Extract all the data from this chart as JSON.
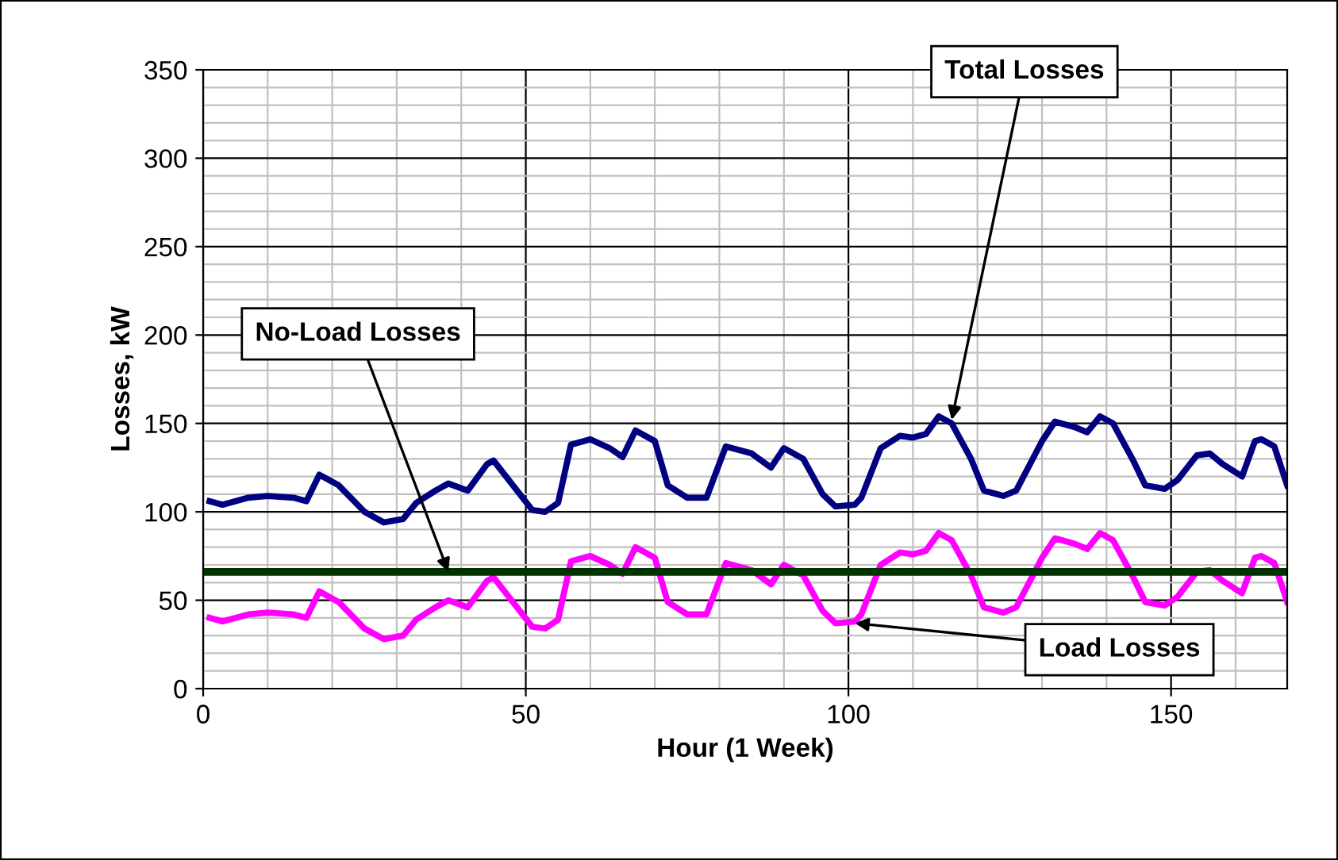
{
  "chart_data": {
    "type": "line",
    "xlabel": "Hour (1 Week)",
    "ylabel": "Losses, kW",
    "x": [
      1,
      3,
      7,
      10,
      14,
      16,
      18,
      21,
      25,
      28,
      31,
      33,
      36,
      38,
      41,
      44,
      45,
      48,
      51,
      53,
      55,
      57,
      60,
      63,
      65,
      67,
      70,
      72,
      75,
      78,
      81,
      85,
      88,
      90,
      93,
      96,
      98,
      101,
      102,
      105,
      108,
      110,
      112,
      114,
      116,
      119,
      121,
      124,
      126,
      130,
      132,
      135,
      137,
      139,
      141,
      144,
      146,
      149,
      151,
      154,
      156,
      158,
      161,
      163,
      164,
      166,
      168
    ],
    "series": [
      {
        "color": "#000080",
        "values": [
          106,
          104,
          108,
          109,
          108,
          106,
          121,
          115,
          100,
          94,
          96,
          105,
          112,
          116,
          112,
          127,
          129,
          115,
          101,
          100,
          105,
          138,
          141,
          136,
          131,
          146,
          140,
          115,
          108,
          108,
          137,
          133,
          125,
          136,
          130,
          110,
          103,
          104,
          108,
          136,
          143,
          142,
          144,
          154,
          150,
          130,
          112,
          109,
          112,
          140,
          151,
          148,
          145,
          154,
          150,
          130,
          115,
          113,
          118,
          132,
          133,
          127,
          120,
          140,
          141,
          137,
          115
        ]
      },
      {
        "color": "#ff00ff",
        "values": [
          40,
          38,
          42,
          43,
          42,
          40,
          55,
          49,
          34,
          28,
          30,
          39,
          46,
          50,
          46,
          61,
          63,
          49,
          35,
          34,
          39,
          72,
          75,
          70,
          65,
          80,
          74,
          49,
          42,
          42,
          71,
          67,
          59,
          70,
          64,
          44,
          37,
          38,
          42,
          70,
          77,
          76,
          78,
          88,
          84,
          64,
          46,
          43,
          46,
          74,
          85,
          82,
          79,
          88,
          84,
          64,
          49,
          47,
          52,
          66,
          67,
          61,
          54,
          74,
          75,
          71,
          49
        ]
      }
    ],
    "ref_lines": [
      {
        "axis": "y",
        "value": 66,
        "color": "#003300"
      }
    ],
    "annotations": [
      {
        "text": "Total Losses",
        "x": 116,
        "y": 152
      },
      {
        "text": "No-Load Losses",
        "x": 38,
        "y": 66
      },
      {
        "text": "Load Losses",
        "x": 101,
        "y": 37
      }
    ],
    "xlim": [
      0,
      168
    ],
    "xticks": [
      0,
      50,
      100,
      150
    ],
    "ylim": [
      0,
      350
    ],
    "yticks": [
      0,
      50,
      100,
      150,
      200,
      250,
      300,
      350
    ],
    "grid": true,
    "legend": false,
    "line_style": "solid",
    "marker": "none"
  }
}
